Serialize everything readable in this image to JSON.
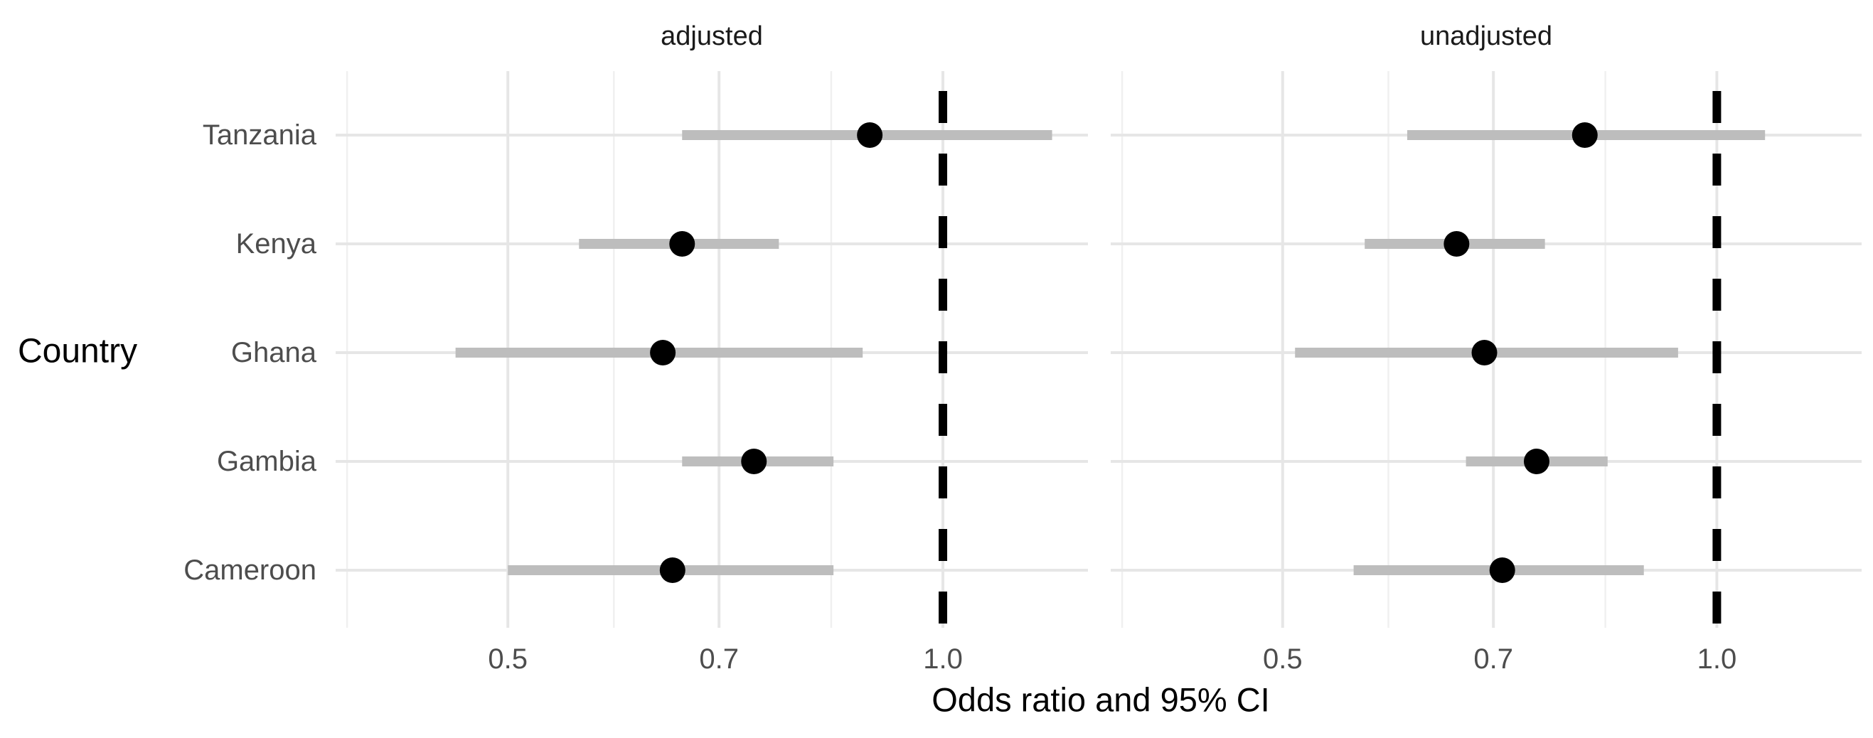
{
  "figure": {
    "x_axis_title": "Odds ratio and 95% CI",
    "y_axis_title": "Country"
  },
  "facets": [
    {
      "label": "adjusted"
    },
    {
      "label": "unadjusted"
    }
  ],
  "colors": {
    "background": "#ffffff",
    "grid_major": "#e6e6e6",
    "grid_minor": "#f0f0f0",
    "ci_bar": "#bdbdbd",
    "point": "#000000",
    "reference_line": "#000000",
    "axis_text": "#4d4d4d",
    "strip_text": "#1a1a1a",
    "title_text": "#000000"
  },
  "chart_data": {
    "type": "scatter",
    "variant": "forest_plot_odds_ratios",
    "title": "",
    "xlabel": "Odds ratio and 95% CI",
    "ylabel": "Country",
    "x_scale": "log10",
    "x_domain": [
      0.38,
      1.26
    ],
    "x_ticks": [
      0.5,
      0.7,
      1.0
    ],
    "x_tick_labels": [
      "0.5",
      "0.7",
      "1.0"
    ],
    "x_minor_gridlines": [
      0.387,
      0.592,
      0.837
    ],
    "reference_line_x": 1.0,
    "grid": true,
    "legend": "none",
    "categories": [
      "Tanzania",
      "Kenya",
      "Ghana",
      "Gambia",
      "Cameroon"
    ],
    "facets": [
      {
        "label": "adjusted",
        "series": [
          {
            "country": "Tanzania",
            "or": 0.89,
            "ci_low": 0.66,
            "ci_high": 1.19
          },
          {
            "country": "Kenya",
            "or": 0.66,
            "ci_low": 0.56,
            "ci_high": 0.77
          },
          {
            "country": "Ghana",
            "or": 0.64,
            "ci_low": 0.46,
            "ci_high": 0.88
          },
          {
            "country": "Gambia",
            "or": 0.74,
            "ci_low": 0.66,
            "ci_high": 0.84
          },
          {
            "country": "Cameroon",
            "or": 0.65,
            "ci_low": 0.5,
            "ci_high": 0.84
          }
        ]
      },
      {
        "label": "unadjusted",
        "series": [
          {
            "country": "Tanzania",
            "or": 0.81,
            "ci_low": 0.61,
            "ci_high": 1.08
          },
          {
            "country": "Kenya",
            "or": 0.66,
            "ci_low": 0.57,
            "ci_high": 0.76
          },
          {
            "country": "Ghana",
            "or": 0.69,
            "ci_low": 0.51,
            "ci_high": 0.94
          },
          {
            "country": "Gambia",
            "or": 0.75,
            "ci_low": 0.67,
            "ci_high": 0.84
          },
          {
            "country": "Cameroon",
            "or": 0.71,
            "ci_low": 0.56,
            "ci_high": 0.89
          }
        ]
      }
    ]
  }
}
